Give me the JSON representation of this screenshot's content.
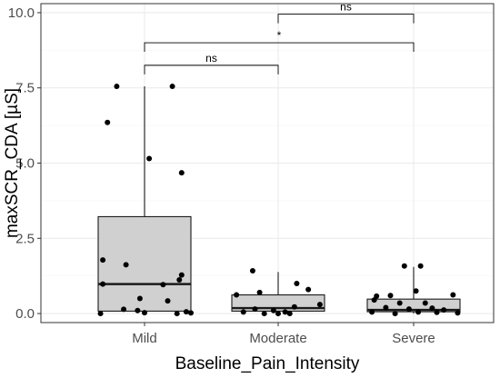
{
  "chart_data": {
    "type": "box",
    "xlabel": "Baseline_Pain_Intensity",
    "ylabel": "maxSCR_CDA [µS]",
    "ylim": [
      -0.3,
      10.3
    ],
    "yticks": [
      0.0,
      2.5,
      5.0,
      7.5,
      10.0
    ],
    "ytick_labels": [
      "0.0",
      "2.5",
      "5.0",
      "7.5",
      "10.0"
    ],
    "grid": true,
    "categories": [
      "Mild",
      "Moderate",
      "Severe"
    ],
    "boxes": [
      {
        "category": "Mild",
        "q1": 0.08,
        "median": 0.98,
        "q3": 3.22,
        "whisker_low": 0.0,
        "whisker_high": 7.55
      },
      {
        "category": "Moderate",
        "q1": 0.08,
        "median": 0.18,
        "q3": 0.62,
        "whisker_low": 0.0,
        "whisker_high": 1.38
      },
      {
        "category": "Severe",
        "q1": 0.06,
        "median": 0.12,
        "q3": 0.48,
        "whisker_low": 0.0,
        "whisker_high": 1.55
      }
    ],
    "points": [
      {
        "category": "Mild",
        "x": -0.12,
        "y": 7.55
      },
      {
        "category": "Mild",
        "x": 0.12,
        "y": 7.55
      },
      {
        "category": "Mild",
        "x": -0.16,
        "y": 6.35
      },
      {
        "category": "Mild",
        "x": 0.02,
        "y": 5.15
      },
      {
        "category": "Mild",
        "x": 0.16,
        "y": 4.68
      },
      {
        "category": "Mild",
        "x": -0.18,
        "y": 1.78
      },
      {
        "category": "Mild",
        "x": -0.08,
        "y": 1.62
      },
      {
        "category": "Mild",
        "x": 0.16,
        "y": 1.28
      },
      {
        "category": "Mild",
        "x": 0.15,
        "y": 1.12
      },
      {
        "category": "Mild",
        "x": -0.18,
        "y": 0.98
      },
      {
        "category": "Mild",
        "x": 0.08,
        "y": 0.96
      },
      {
        "category": "Mild",
        "x": -0.02,
        "y": 0.5
      },
      {
        "category": "Mild",
        "x": 0.1,
        "y": 0.42
      },
      {
        "category": "Mild",
        "x": -0.09,
        "y": 0.14
      },
      {
        "category": "Mild",
        "x": -0.03,
        "y": 0.1
      },
      {
        "category": "Mild",
        "x": 0.18,
        "y": 0.06
      },
      {
        "category": "Mild",
        "x": -0.19,
        "y": 0.0
      },
      {
        "category": "Mild",
        "x": 0.0,
        "y": 0.03
      },
      {
        "category": "Mild",
        "x": 0.14,
        "y": 0.0
      },
      {
        "category": "Mild",
        "x": 0.2,
        "y": 0.02
      },
      {
        "category": "Moderate",
        "x": -0.11,
        "y": 1.42
      },
      {
        "category": "Moderate",
        "x": 0.08,
        "y": 1.0
      },
      {
        "category": "Moderate",
        "x": 0.13,
        "y": 0.8
      },
      {
        "category": "Moderate",
        "x": -0.18,
        "y": 0.62
      },
      {
        "category": "Moderate",
        "x": -0.08,
        "y": 0.7
      },
      {
        "category": "Moderate",
        "x": 0.18,
        "y": 0.3
      },
      {
        "category": "Moderate",
        "x": 0.07,
        "y": 0.22
      },
      {
        "category": "Moderate",
        "x": -0.1,
        "y": 0.15
      },
      {
        "category": "Moderate",
        "x": -0.02,
        "y": 0.1
      },
      {
        "category": "Moderate",
        "x": 0.03,
        "y": 0.05
      },
      {
        "category": "Moderate",
        "x": -0.15,
        "y": 0.05
      },
      {
        "category": "Moderate",
        "x": -0.06,
        "y": 0.0
      },
      {
        "category": "Moderate",
        "x": 0.0,
        "y": 0.0
      },
      {
        "category": "Moderate",
        "x": 0.05,
        "y": 0.0
      },
      {
        "category": "Severe",
        "x": -0.04,
        "y": 1.58
      },
      {
        "category": "Severe",
        "x": 0.03,
        "y": 1.58
      },
      {
        "category": "Severe",
        "x": 0.01,
        "y": 0.75
      },
      {
        "category": "Severe",
        "x": -0.16,
        "y": 0.58
      },
      {
        "category": "Severe",
        "x": -0.1,
        "y": 0.6
      },
      {
        "category": "Severe",
        "x": 0.17,
        "y": 0.62
      },
      {
        "category": "Severe",
        "x": -0.17,
        "y": 0.45
      },
      {
        "category": "Severe",
        "x": -0.06,
        "y": 0.35
      },
      {
        "category": "Severe",
        "x": 0.05,
        "y": 0.35
      },
      {
        "category": "Severe",
        "x": -0.12,
        "y": 0.2
      },
      {
        "category": "Severe",
        "x": 0.08,
        "y": 0.18
      },
      {
        "category": "Severe",
        "x": -0.02,
        "y": 0.15
      },
      {
        "category": "Severe",
        "x": 0.13,
        "y": 0.12
      },
      {
        "category": "Severe",
        "x": -0.18,
        "y": 0.05
      },
      {
        "category": "Severe",
        "x": 0.02,
        "y": 0.05
      },
      {
        "category": "Severe",
        "x": 0.1,
        "y": 0.04
      },
      {
        "category": "Severe",
        "x": 0.19,
        "y": 0.02
      },
      {
        "category": "Severe",
        "x": -0.08,
        "y": 0.0
      }
    ],
    "comparisons": [
      {
        "from": "Moderate",
        "to": "Severe",
        "y": 9.95,
        "label": "ns"
      },
      {
        "from": "Mild",
        "to": "Severe",
        "y": 9.0,
        "label": "*"
      },
      {
        "from": "Mild",
        "to": "Moderate",
        "y": 8.25,
        "label": "ns"
      }
    ],
    "colors": {
      "box_fill": "#d0d0d0",
      "box_stroke": "#1a1a1a",
      "point": "#000000",
      "grid_major": "#ebebeb",
      "grid_minor": "#f5f5f5",
      "panel_border": "#333333"
    }
  }
}
